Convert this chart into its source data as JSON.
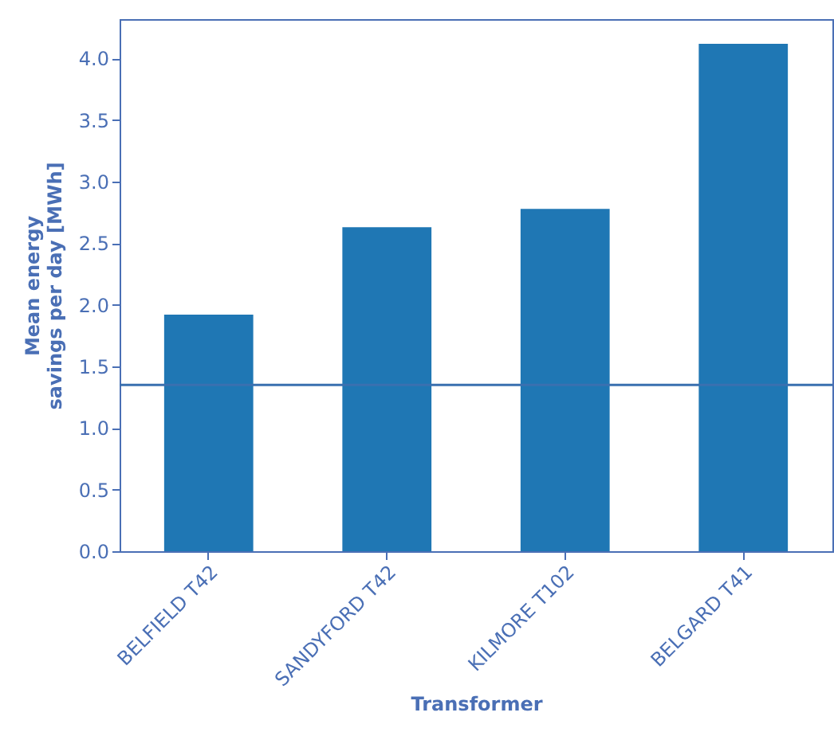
{
  "chart_data": {
    "type": "bar",
    "xlabel": "Transformer",
    "ylabel": "Mean energy\nsavings per day [MWh]",
    "categories": [
      "BELFIELD T42",
      "SANDYFORD T42",
      "KILMORE T102",
      "BELGARD T41"
    ],
    "values": [
      1.92,
      2.63,
      2.78,
      4.12
    ],
    "color": "#1f77b4",
    "ylim": [
      0,
      4.32
    ],
    "yticks": [
      {
        "value": 0,
        "label": "0.0"
      },
      0.5,
      {
        "value": 1,
        "label": "1.0"
      },
      1.5,
      {
        "value": 2,
        "label": "2.0"
      },
      2.5,
      {
        "value": 3,
        "label": "3.0"
      },
      3.5,
      {
        "value": 4,
        "label": "4.0"
      }
    ],
    "ref_lines": [
      {
        "axis": "y",
        "value": 1.35,
        "color": "#3a70b0"
      }
    ],
    "grid": false
  }
}
